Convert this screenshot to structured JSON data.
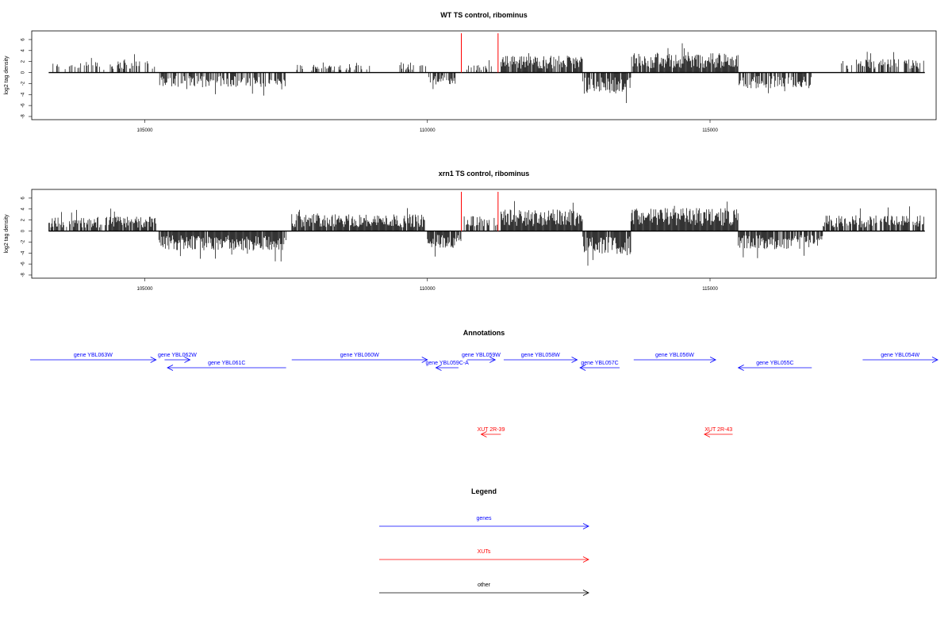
{
  "chart_data": [
    {
      "type": "bar",
      "title": "WT TS control, ribominus",
      "ylabel": "log2 tag density",
      "xlim": [
        103000,
        119000
      ],
      "ylim": [
        -8,
        7
      ],
      "xticks": [
        105000,
        110000,
        115000
      ],
      "xtick_labels": [
        "105000",
        "110000",
        "115000"
      ],
      "yticks": [
        6,
        4,
        2,
        0,
        -2,
        -4,
        -6,
        -8
      ],
      "ytick_labels": [
        "6",
        "4",
        "2",
        "0",
        "-2",
        "-4",
        "-6",
        "-8"
      ],
      "colors": {
        "bars": "#000000",
        "markers": "#ff0000"
      },
      "markers_x": [
        110600,
        111250
      ],
      "segments": [
        {
          "from": 103300,
          "to": 103600,
          "sign": 1,
          "amp": 1.6,
          "density": 0.25
        },
        {
          "from": 103600,
          "to": 104200,
          "sign": 1,
          "amp": 1.8,
          "density": 0.35
        },
        {
          "from": 104200,
          "to": 105200,
          "sign": 1,
          "amp": 2.0,
          "density": 0.45
        },
        {
          "from": 105250,
          "to": 107500,
          "sign": -1,
          "amp": 2.4,
          "density": 0.65
        },
        {
          "from": 107600,
          "to": 109000,
          "sign": 1,
          "amp": 1.5,
          "density": 0.3
        },
        {
          "from": 109500,
          "to": 110000,
          "sign": 1,
          "amp": 1.8,
          "density": 0.5
        },
        {
          "from": 110000,
          "to": 110500,
          "sign": -1,
          "amp": 2.0,
          "density": 0.6
        },
        {
          "from": 110700,
          "to": 111150,
          "sign": 1,
          "amp": 1.3,
          "density": 0.3
        },
        {
          "from": 111300,
          "to": 112750,
          "sign": 1,
          "amp": 2.8,
          "density": 0.9
        },
        {
          "from": 112750,
          "to": 113600,
          "sign": -1,
          "amp": 3.5,
          "density": 0.8
        },
        {
          "from": 113600,
          "to": 115500,
          "sign": 1,
          "amp": 3.2,
          "density": 0.95
        },
        {
          "from": 115500,
          "to": 116800,
          "sign": -1,
          "amp": 2.6,
          "density": 0.75
        },
        {
          "from": 117300,
          "to": 118800,
          "sign": 1,
          "amp": 2.2,
          "density": 0.6
        }
      ]
    },
    {
      "type": "bar",
      "title": "xrn1 TS control, ribominus",
      "ylabel": "log2 tag density",
      "xlim": [
        103000,
        119000
      ],
      "ylim": [
        -8,
        7
      ],
      "xticks": [
        105000,
        110000,
        115000
      ],
      "xtick_labels": [
        "105000",
        "110000",
        "115000"
      ],
      "yticks": [
        6,
        4,
        2,
        0,
        -2,
        -4,
        -6,
        -8
      ],
      "ytick_labels": [
        "6",
        "4",
        "2",
        "0",
        "-2",
        "-4",
        "-6",
        "-8"
      ],
      "colors": {
        "bars": "#000000",
        "markers": "#ff0000"
      },
      "markers_x": [
        110600,
        111250
      ],
      "segments": [
        {
          "from": 103300,
          "to": 105200,
          "sign": 1,
          "amp": 2.4,
          "density": 0.85
        },
        {
          "from": 105250,
          "to": 107500,
          "sign": -1,
          "amp": 3.2,
          "density": 0.95
        },
        {
          "from": 107600,
          "to": 109950,
          "sign": 1,
          "amp": 2.8,
          "density": 0.95
        },
        {
          "from": 110000,
          "to": 110600,
          "sign": -1,
          "amp": 2.8,
          "density": 0.85
        },
        {
          "from": 110650,
          "to": 111250,
          "sign": 1,
          "amp": 2.5,
          "density": 0.7
        },
        {
          "from": 111300,
          "to": 112750,
          "sign": 1,
          "amp": 3.6,
          "density": 1.0
        },
        {
          "from": 112750,
          "to": 113600,
          "sign": -1,
          "amp": 4.0,
          "density": 0.95
        },
        {
          "from": 113600,
          "to": 115500,
          "sign": 1,
          "amp": 3.8,
          "density": 1.0
        },
        {
          "from": 115500,
          "to": 117000,
          "sign": -1,
          "amp": 3.0,
          "density": 0.9
        },
        {
          "from": 117000,
          "to": 118800,
          "sign": 1,
          "amp": 2.6,
          "density": 0.8
        }
      ]
    }
  ],
  "annotations": {
    "title": "Annotations",
    "xlim": [
      103000,
      119000
    ],
    "genes_color": "#0000ff",
    "xuts_color": "#ff0000",
    "genes": [
      {
        "label": "gene YBL063W",
        "start": 102200,
        "end": 105200,
        "strand": "+",
        "row": 0
      },
      {
        "label": "gene YBL062W",
        "start": 105350,
        "end": 105800,
        "strand": "+",
        "row": 0
      },
      {
        "label": "gene YBL061C",
        "start": 105400,
        "end": 107500,
        "strand": "-",
        "row": 1
      },
      {
        "label": "gene YBL060W",
        "start": 107600,
        "end": 110000,
        "strand": "+",
        "row": 0
      },
      {
        "label": "gene YBL059C-A",
        "start": 110150,
        "end": 110550,
        "strand": "-",
        "row": 1
      },
      {
        "label": "gene YBL059W",
        "start": 110700,
        "end": 111200,
        "strand": "+",
        "row": 0
      },
      {
        "label": "gene YBL058W",
        "start": 111350,
        "end": 112650,
        "strand": "+",
        "row": 0
      },
      {
        "label": "gene YBL057C",
        "start": 112700,
        "end": 113400,
        "strand": "-",
        "row": 1
      },
      {
        "label": "gene YBL056W",
        "start": 113650,
        "end": 115100,
        "strand": "+",
        "row": 0
      },
      {
        "label": "gene YBL055C",
        "start": 115500,
        "end": 116800,
        "strand": "-",
        "row": 1
      },
      {
        "label": "gene YBL054W",
        "start": 117700,
        "end": 119200,
        "strand": "+",
        "row": 0
      }
    ],
    "xuts": [
      {
        "label": "XUT 2R-39",
        "start": 110950,
        "end": 111300,
        "strand": "-"
      },
      {
        "label": "XUT 2R-43",
        "start": 114900,
        "end": 115400,
        "strand": "-"
      }
    ]
  },
  "legend": {
    "title": "Legend",
    "items": [
      {
        "label": "genes",
        "color": "#0000ff"
      },
      {
        "label": "XUTs",
        "color": "#ff0000"
      },
      {
        "label": "other",
        "color": "#000000"
      }
    ]
  }
}
